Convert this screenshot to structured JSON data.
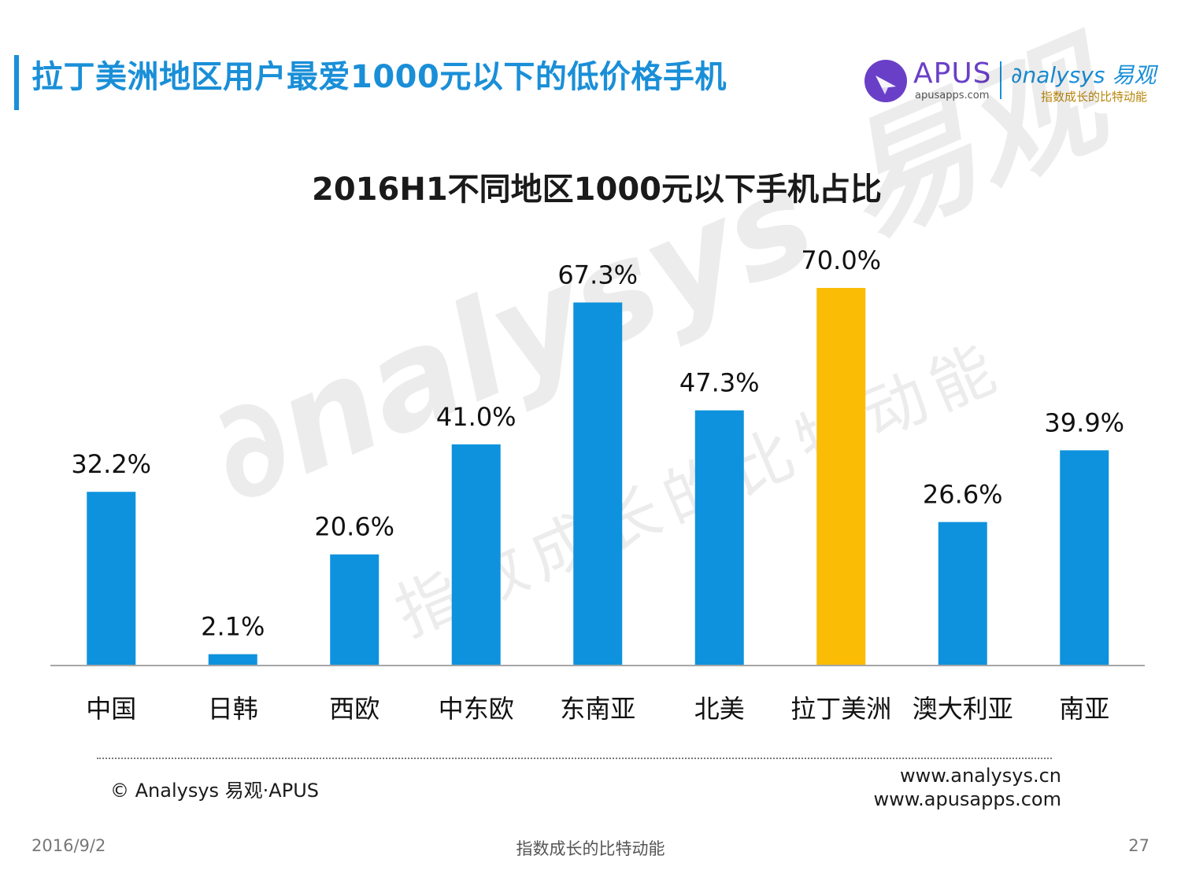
{
  "slide": {
    "title": "拉丁美洲地区用户最爱1000元以下的低价格手机",
    "accent_color": "#1a8fd8"
  },
  "logos": {
    "apus_name": "APUS",
    "apus_url": "apusapps.com",
    "apus_color": "#6a3fc8",
    "analysys_name": "nalysys 易观",
    "analysys_slogan": "指数成长的比特动能",
    "analysys_color": "#1a8fd8",
    "slogan_color": "#b8860b"
  },
  "watermark": {
    "text_en": "nalysys 易观",
    "text_cn": "指数成长的比特动能"
  },
  "chart_data": {
    "type": "bar",
    "title": "2016H1不同地区1000元以下手机占比",
    "categories": [
      "中国",
      "日韩",
      "西欧",
      "中东欧",
      "东南亚",
      "北美",
      "拉丁美洲",
      "澳大利亚",
      "南亚"
    ],
    "values": [
      32.2,
      2.1,
      20.6,
      41.0,
      67.3,
      47.3,
      70.0,
      26.6,
      39.9
    ],
    "value_labels": [
      "32.2%",
      "2.1%",
      "20.6%",
      "41.0%",
      "67.3%",
      "47.3%",
      "70.0%",
      "26.6%",
      "39.9%"
    ],
    "highlight_index": 6,
    "bar_color": "#0e92dd",
    "highlight_color": "#fbbc05",
    "ylim": [
      0,
      70
    ],
    "grid": false,
    "xlabel": "",
    "ylabel": ""
  },
  "footer": {
    "copyright": "© Analysys 易观·APUS",
    "site_1": "www.analysys.cn",
    "site_2": "www.apusapps.com",
    "date": "2016/9/2",
    "slogan": "指数成长的比特动能",
    "page": "27"
  }
}
